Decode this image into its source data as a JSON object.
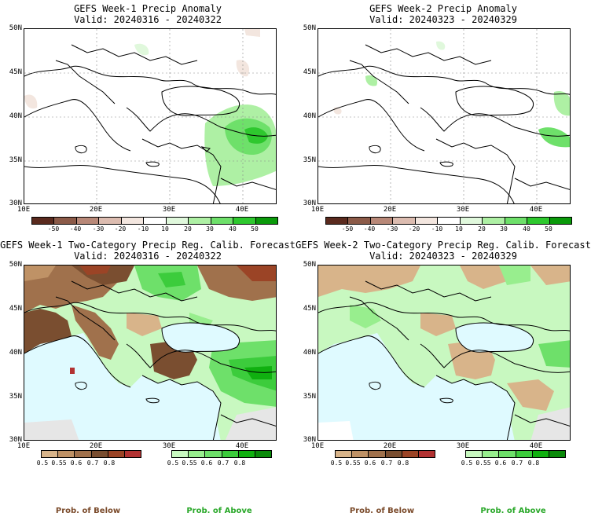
{
  "panels": {
    "tl": {
      "title": "GEFS Week-1 Precip Anomaly",
      "valid": "Valid: 20240316 - 20240322"
    },
    "tr": {
      "title": "GEFS Week-2 Precip Anomaly",
      "valid": "Valid: 20240323 - 20240329"
    },
    "bl": {
      "title": "GEFS Week-1 Two-Category Precip Reg. Calib. Forecast",
      "valid": "Valid: 20240316 - 20240322"
    },
    "br": {
      "title": "GEFS Week-2 Two-Category Precip Reg. Calib. Forecast",
      "valid": "Valid: 20240323 - 20240329"
    }
  },
  "axes": {
    "lat_labels": [
      "50N",
      "45N",
      "40N",
      "35N",
      "30N"
    ],
    "lon_labels": [
      "10E",
      "20E",
      "30E",
      "40E"
    ]
  },
  "anomaly_colorbar": {
    "labels": [
      "-50",
      "-40",
      "-30",
      "-20",
      "-10",
      "10",
      "20",
      "30",
      "40",
      "50"
    ],
    "colors": [
      "#5a2a1e",
      "#8b5a48",
      "#b88878",
      "#dcbcb0",
      "#f3e6df",
      "#ffffff",
      "#e0f8dc",
      "#aef0a4",
      "#6ee06a",
      "#2ec82e",
      "#0a9a0a"
    ]
  },
  "below_colorbar": {
    "labels": [
      "0.5",
      "0.55",
      "0.6",
      "0.7",
      "0.8"
    ],
    "colors": [
      "#d8b48a",
      "#bf9266",
      "#a0714c",
      "#7a4e30",
      "#9b4426",
      "#b23232"
    ]
  },
  "above_colorbar": {
    "labels": [
      "0.5",
      "0.55",
      "0.6",
      "0.7",
      "0.8"
    ],
    "colors": [
      "#c8f8c0",
      "#98ee8e",
      "#6ee06a",
      "#3ccc3c",
      "#10b010",
      "#0a8a0a"
    ]
  },
  "legend": {
    "below": "Prob. of Below",
    "above": "Prob. of Above",
    "below_color": "#7a4a2a",
    "above_color": "#2aa82a"
  },
  "colors": {
    "sea": "#dffaff",
    "land_near_normal": "#ffffff",
    "no_data": "#e6e6e6"
  }
}
